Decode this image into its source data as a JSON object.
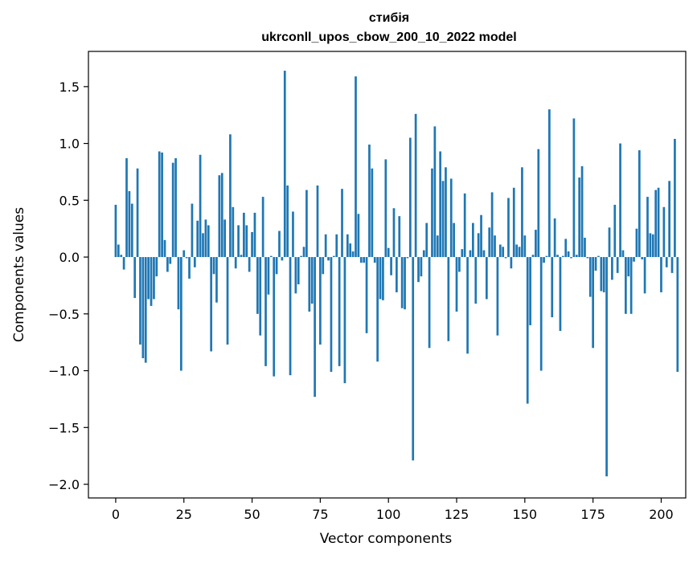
{
  "chart_data": {
    "type": "bar",
    "title": "стибія\nukrconll_upos_cbow_200_10_2022 model",
    "title_lines": [
      "стибія",
      "ukrconll_upos_cbow_200_10_2022 model"
    ],
    "xlabel": "Vector components",
    "ylabel": "Components values",
    "xlim": [
      -10,
      209
    ],
    "ylim": [
      -2.12,
      1.81
    ],
    "xticks": [
      0,
      25,
      50,
      75,
      100,
      125,
      150,
      175,
      200
    ],
    "xtick_labels": [
      "0",
      "25",
      "50",
      "75",
      "100",
      "125",
      "150",
      "175",
      "200"
    ],
    "yticks": [
      -2.0,
      -1.5,
      -1.0,
      -0.5,
      0.0,
      0.5,
      1.0,
      1.5
    ],
    "ytick_labels": [
      "−2.0",
      "−1.5",
      "−1.0",
      "−0.5",
      "0.0",
      "0.5",
      "1.0",
      "1.5"
    ],
    "grid": false,
    "bar_color": "#1f77b4",
    "values": [
      0.46,
      0.11,
      0.02,
      -0.11,
      0.87,
      0.58,
      0.47,
      -0.36,
      0.78,
      -0.77,
      -0.89,
      -0.93,
      -0.37,
      -0.43,
      -0.37,
      -0.17,
      0.93,
      0.92,
      0.15,
      -0.13,
      -0.06,
      0.83,
      0.87,
      -0.46,
      -1.0,
      0.06,
      -0.01,
      -0.19,
      0.47,
      -0.09,
      0.32,
      0.9,
      0.21,
      0.33,
      0.28,
      -0.83,
      -0.15,
      -0.4,
      0.72,
      0.74,
      0.33,
      -0.77,
      1.08,
      0.44,
      -0.1,
      0.28,
      0.02,
      0.39,
      0.28,
      -0.13,
      0.22,
      0.39,
      -0.5,
      -0.69,
      0.53,
      -0.96,
      -0.33,
      0.01,
      -1.05,
      -0.15,
      0.23,
      -0.03,
      1.64,
      0.63,
      -1.04,
      0.4,
      -0.32,
      -0.24,
      0.01,
      0.09,
      0.59,
      -0.48,
      -0.41,
      -1.23,
      0.63,
      -0.77,
      -0.15,
      0.2,
      -0.03,
      -1.01,
      0.01,
      0.2,
      -0.96,
      0.6,
      -1.11,
      0.2,
      0.12,
      0.05,
      1.59,
      0.38,
      -0.05,
      -0.05,
      -0.67,
      0.99,
      0.78,
      -0.05,
      -0.92,
      -0.37,
      -0.38,
      0.86,
      0.08,
      -0.16,
      0.43,
      -0.31,
      0.36,
      -0.45,
      -0.46,
      -0.01,
      1.05,
      -1.79,
      1.26,
      -0.22,
      -0.17,
      0.06,
      0.3,
      -0.8,
      0.78,
      1.15,
      0.19,
      0.93,
      0.67,
      0.79,
      -0.74,
      0.69,
      0.3,
      -0.48,
      -0.13,
      0.07,
      0.56,
      -0.85,
      0.06,
      0.3,
      -0.41,
      0.21,
      0.37,
      0.06,
      -0.37,
      0.26,
      0.57,
      0.19,
      -0.69,
      0.11,
      0.09,
      -0.01,
      0.52,
      -0.1,
      0.61,
      0.11,
      0.09,
      0.79,
      0.19,
      -1.29,
      -0.6,
      0.02,
      0.24,
      0.95,
      -1.0,
      -0.05,
      0.01,
      1.3,
      -0.53,
      0.34,
      0.02,
      -0.65,
      0.01,
      0.16,
      0.05,
      -0.01,
      1.22,
      0.02,
      0.7,
      0.8,
      0.17,
      -0.01,
      -0.35,
      -0.8,
      -0.12,
      0.01,
      -0.3,
      -0.31,
      -1.93,
      0.26,
      -0.2,
      0.46,
      -0.14,
      1.0,
      0.06,
      -0.5,
      -0.17,
      -0.5,
      -0.04,
      0.25,
      0.94,
      -0.02,
      -0.32,
      0.53,
      0.21,
      0.2,
      0.59,
      0.61,
      -0.31,
      0.44,
      -0.09,
      0.67,
      -0.14,
      1.04,
      -1.01
    ]
  }
}
